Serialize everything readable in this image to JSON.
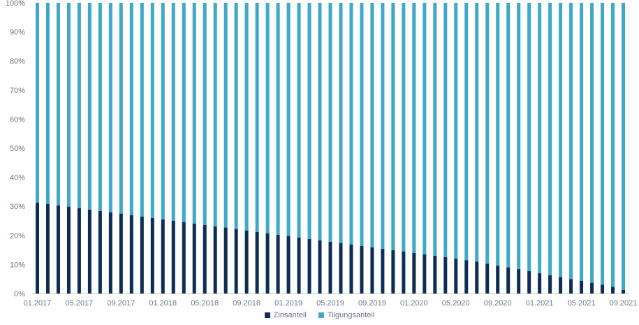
{
  "chart_data": {
    "type": "bar",
    "stacked": true,
    "percent": true,
    "ylim": [
      0,
      100
    ],
    "yticks": [
      "0%",
      "10%",
      "20%",
      "30%",
      "40%",
      "50%",
      "60%",
      "70%",
      "80%",
      "90%",
      "100%"
    ],
    "x": [
      "01.2017",
      "02.2017",
      "03.2017",
      "04.2017",
      "05.2017",
      "06.2017",
      "07.2017",
      "08.2017",
      "09.2017",
      "10.2017",
      "11.2017",
      "12.2017",
      "01.2018",
      "02.2018",
      "03.2018",
      "04.2018",
      "05.2018",
      "06.2018",
      "07.2018",
      "08.2018",
      "09.2018",
      "10.2018",
      "11.2018",
      "12.2018",
      "01.2019",
      "02.2019",
      "03.2019",
      "04.2019",
      "05.2019",
      "06.2019",
      "07.2019",
      "08.2019",
      "09.2019",
      "10.2019",
      "11.2019",
      "12.2019",
      "01.2020",
      "02.2020",
      "03.2020",
      "04.2020",
      "05.2020",
      "06.2020",
      "07.2020",
      "08.2020",
      "09.2020",
      "10.2020",
      "11.2020",
      "12.2020",
      "01.2021",
      "02.2021",
      "03.2021",
      "04.2021",
      "05.2021",
      "06.2021",
      "07.2021",
      "08.2021",
      "09.2021"
    ],
    "xticks": [
      "01.2017",
      "05.2017",
      "09.2017",
      "01.2018",
      "05.2018",
      "09.2018",
      "01.2019",
      "05.2019",
      "09.2019",
      "01.2020",
      "05.2020",
      "09.2020",
      "01.2021",
      "05.2021",
      "09.2021"
    ],
    "series": [
      {
        "name": "Zinsanteil",
        "color": "#0d2d52",
        "values": [
          31.3,
          30.8,
          30.3,
          29.9,
          29.4,
          28.9,
          28.4,
          27.9,
          27.5,
          27.0,
          26.5,
          26.0,
          25.5,
          25.0,
          24.6,
          24.1,
          23.6,
          23.1,
          22.7,
          22.2,
          21.7,
          21.2,
          20.7,
          20.2,
          19.8,
          19.3,
          18.8,
          18.3,
          17.8,
          17.4,
          16.9,
          16.4,
          15.9,
          15.4,
          14.9,
          14.5,
          14.0,
          13.5,
          13.0,
          12.5,
          12.0,
          11.5,
          11.0,
          10.3,
          9.6,
          9.0,
          8.4,
          7.7,
          7.0,
          6.3,
          5.7,
          5.0,
          4.4,
          3.7,
          3.0,
          2.3,
          1.2
        ]
      },
      {
        "name": "Tilgungsanteil",
        "color": "#3fa9c9",
        "values": [
          68.7,
          69.2,
          69.7,
          70.1,
          70.6,
          71.1,
          71.6,
          72.1,
          72.5,
          73.0,
          73.5,
          74.0,
          74.5,
          75.0,
          75.4,
          75.9,
          76.4,
          76.9,
          77.3,
          77.8,
          78.3,
          78.8,
          79.3,
          79.8,
          80.2,
          80.7,
          81.2,
          81.7,
          82.2,
          82.6,
          83.1,
          83.6,
          84.1,
          84.6,
          85.1,
          85.5,
          86.0,
          86.5,
          87.0,
          87.5,
          88.0,
          88.5,
          89.0,
          89.7,
          90.4,
          91.0,
          91.6,
          92.3,
          93.0,
          93.7,
          94.3,
          95.0,
          95.6,
          96.3,
          97.0,
          97.7,
          98.8
        ]
      }
    ],
    "legend_position": "bottom"
  },
  "legend": {
    "items": [
      {
        "label": "Zinsanteil",
        "color": "#0d2d52"
      },
      {
        "label": "Tilgungsanteil",
        "color": "#3fa9c9"
      }
    ]
  }
}
